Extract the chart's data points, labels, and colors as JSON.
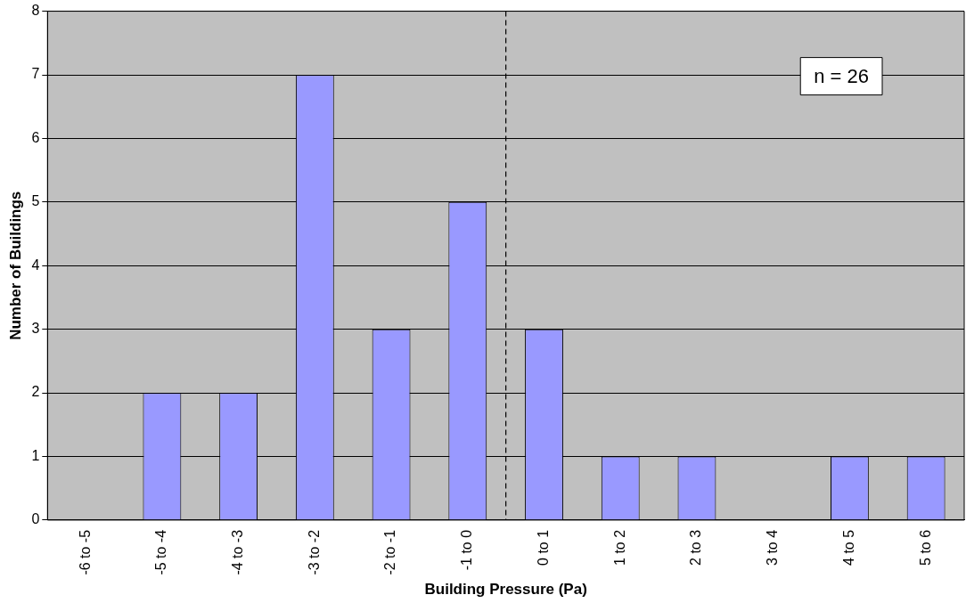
{
  "chart_data": {
    "type": "bar",
    "xlabel": "Building Pressure (Pa)",
    "ylabel": "Number of Buildings",
    "categories": [
      "-6 to -5",
      "-5 to -4",
      "-4 to -3",
      "-3 to -2",
      "-2 to -1",
      "-1 to 0",
      "0 to 1",
      "1 to 2",
      "2 to 3",
      "3 to 4",
      "4 to 5",
      "5 to 6"
    ],
    "values": [
      0,
      2,
      2,
      7,
      3,
      5,
      3,
      1,
      1,
      0,
      1,
      1
    ],
    "color": "#9999ff",
    "ylim": [
      0,
      8
    ],
    "yticks": [
      0,
      1,
      2,
      3,
      4,
      5,
      6,
      7,
      8
    ],
    "grid": "y",
    "ref_lines": [
      {
        "axis": "x",
        "value": "0 to 1",
        "color": "#000000",
        "line_style": "dashed"
      }
    ],
    "annotations": [
      "n = 26"
    ]
  }
}
